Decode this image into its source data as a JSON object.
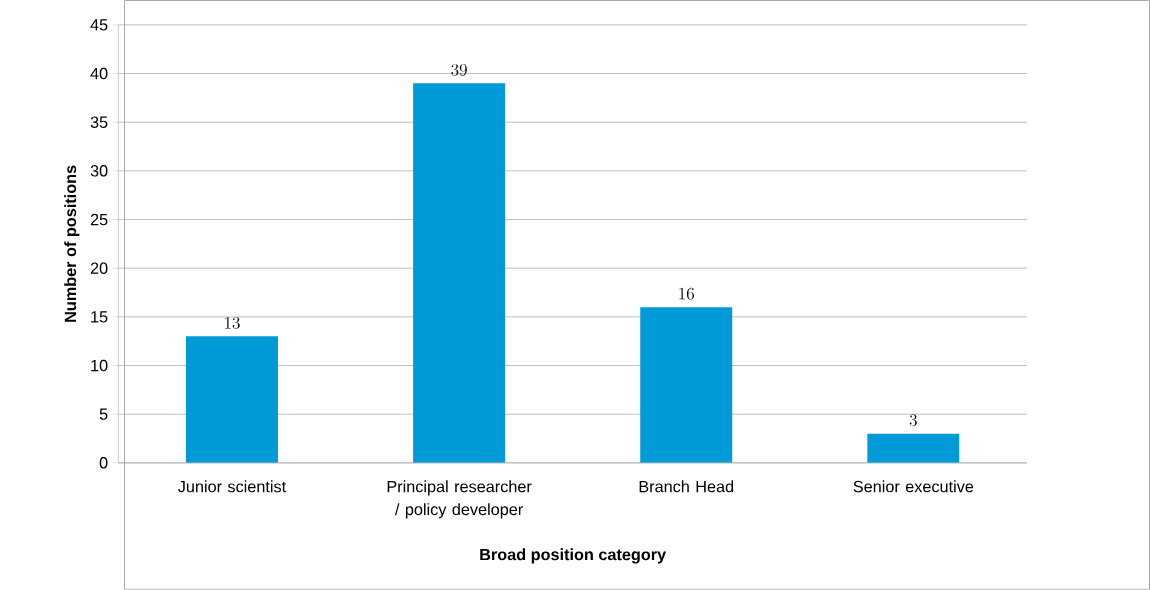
{
  "chart_data": {
    "type": "bar",
    "categories": [
      "Junior scientist",
      "Principal researcher / policy developer",
      "Branch Head",
      "Senior executive"
    ],
    "values": [
      13,
      39,
      16,
      3
    ],
    "color": "#009ad9",
    "xlabel": "Broad position category",
    "ylabel": "Number of positions",
    "ylim": [
      0,
      45
    ],
    "yticks": [
      0,
      5,
      10,
      15,
      20,
      25,
      30,
      35,
      40,
      45
    ],
    "grid": "y",
    "data_labels": true
  }
}
